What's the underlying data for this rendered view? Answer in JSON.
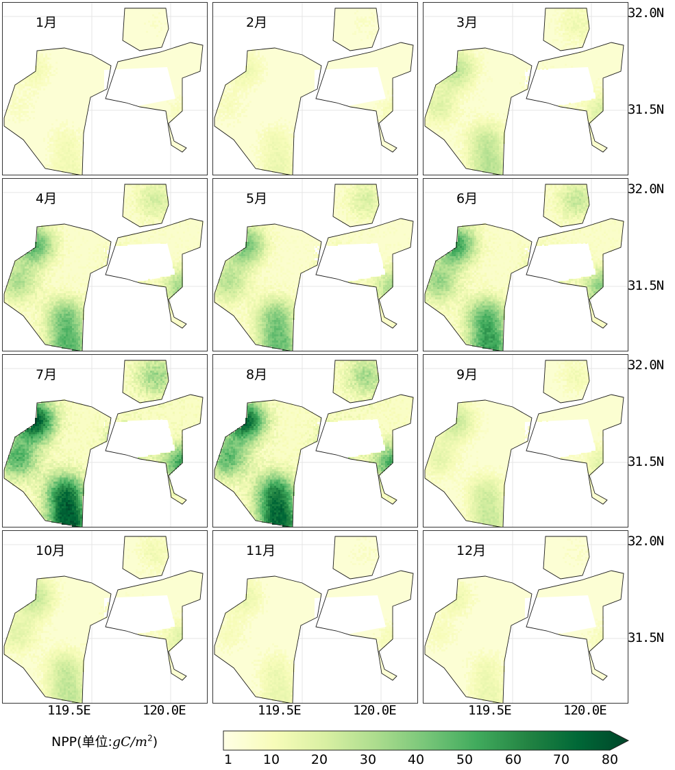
{
  "panels": [
    {
      "label": "1月",
      "intensity": 0.12
    },
    {
      "label": "2月",
      "intensity": 0.14
    },
    {
      "label": "3月",
      "intensity": 0.3
    },
    {
      "label": "4月",
      "intensity": 0.52
    },
    {
      "label": "5月",
      "intensity": 0.48
    },
    {
      "label": "6月",
      "intensity": 0.6
    },
    {
      "label": "7月",
      "intensity": 0.85
    },
    {
      "label": "8月",
      "intensity": 0.8
    },
    {
      "label": "9月",
      "intensity": 0.26
    },
    {
      "label": "10月",
      "intensity": 0.28
    },
    {
      "label": "11月",
      "intensity": 0.15
    },
    {
      "label": "12月",
      "intensity": 0.14
    }
  ],
  "lat_labels": [
    "32.0N",
    "31.5N"
  ],
  "lon_labels": [
    "119.5E",
    "120.0E"
  ],
  "legend": {
    "name": "NPP(单位:",
    "unit_base": "gC/m",
    "unit_exp": "2",
    "unit_close": ")",
    "ticks": [
      "1",
      "10",
      "20",
      "30",
      "40",
      "50",
      "60",
      "70",
      "80"
    ],
    "colors": [
      "#ffffe5",
      "#f7fcb9",
      "#d9f0a3",
      "#addd8e",
      "#78c679",
      "#41ab5d",
      "#238443",
      "#006837",
      "#004529"
    ]
  }
}
